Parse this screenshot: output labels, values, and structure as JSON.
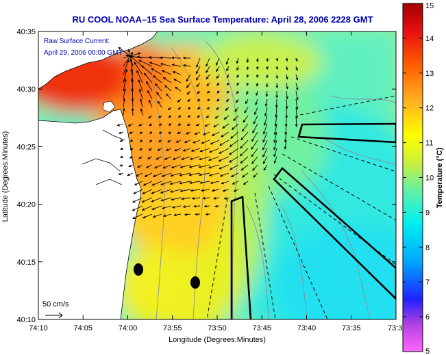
{
  "chart_data": {
    "type": "heatmap",
    "title": "RU COOL  NOAA–15  Sea Surface Temperature:  April 28, 2006 2228 GMT",
    "xlabel": "Longitude (Degrees:Minutes)",
    "ylabel": "Latitude (Degrees:Minutes)",
    "x_ticks": [
      "74:10",
      "74:05",
      "74:00",
      "73:55",
      "73:50",
      "73:45",
      "73:40",
      "73:35",
      "73:3"
    ],
    "y_ticks": [
      "40:10",
      "40:15",
      "40:20",
      "40:25",
      "40:30",
      "40:35"
    ],
    "xlim": [
      -74.1667,
      -73.5
    ],
    "ylim": [
      40.1667,
      40.5833
    ],
    "colorbar": {
      "label": "Temperature (°C)",
      "range": [
        5,
        15
      ],
      "ticks": [
        "5",
        "6",
        "7",
        "8",
        "9",
        "10",
        "11",
        "12",
        "13",
        "14",
        "15"
      ],
      "stops": [
        {
          "v": 5,
          "c": "#ff66ff"
        },
        {
          "v": 5.8,
          "c": "#b040e0"
        },
        {
          "v": 6.5,
          "c": "#2020ff"
        },
        {
          "v": 7.6,
          "c": "#00a8ff"
        },
        {
          "v": 8.7,
          "c": "#00f0f0"
        },
        {
          "v": 9.6,
          "c": "#60f0a8"
        },
        {
          "v": 10.4,
          "c": "#c8f040"
        },
        {
          "v": 11.2,
          "c": "#ffff00"
        },
        {
          "v": 12.2,
          "c": "#ffb020"
        },
        {
          "v": 13.2,
          "c": "#ff6000"
        },
        {
          "v": 14.2,
          "c": "#e81010"
        },
        {
          "v": 15,
          "c": "#a00000"
        }
      ]
    },
    "annotation": {
      "line1": "Raw Surface Current:",
      "line2": "April 29, 2006 00:00 GMT"
    },
    "scale_label": "50 cm/s",
    "grid": false,
    "colors": {
      "title": "#0000b4",
      "land": "#ffffff",
      "vectors": "#000000",
      "contours": "#8c8c9c"
    }
  }
}
